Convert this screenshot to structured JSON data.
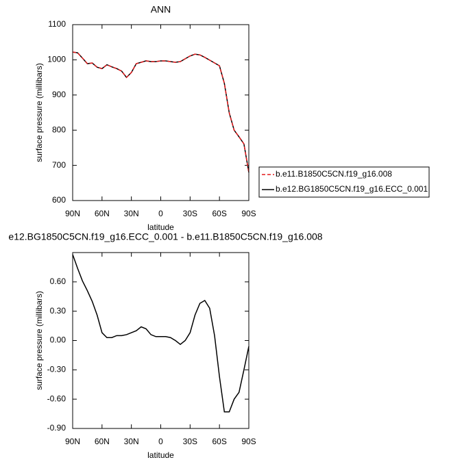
{
  "chart_data": [
    {
      "type": "line",
      "title": "ANN",
      "xlabel": "latitude",
      "ylabel": "surface pressure (millibars)",
      "x": [
        90,
        85,
        80,
        75,
        70,
        65,
        60,
        55,
        50,
        45,
        40,
        35,
        30,
        25,
        20,
        15,
        10,
        5,
        0,
        -5,
        -10,
        -15,
        -20,
        -25,
        -30,
        -35,
        -40,
        -45,
        -50,
        -55,
        -60,
        -65,
        -70,
        -75,
        -80,
        -85,
        -90
      ],
      "series": [
        {
          "name": "b.e11.B1850C5CN.f19_g16.008",
          "color": "#e41a1c",
          "linestyle": "dashed",
          "values": [
            1022,
            1020,
            1005,
            989,
            991,
            979,
            975,
            986,
            980,
            975,
            968,
            950,
            964,
            989,
            993,
            997,
            995,
            995,
            997,
            997,
            995,
            993,
            995,
            1003,
            1011,
            1016,
            1014,
            1007,
            999,
            991,
            983,
            933,
            849,
            800,
            781,
            761,
            680
          ]
        },
        {
          "name": "b.e12.BG1850C5CN.f19_g16.ECC_0.001",
          "color": "#000000",
          "linestyle": "solid",
          "values": [
            1022,
            1020,
            1005,
            989,
            991,
            979,
            975,
            986,
            980,
            975,
            968,
            950,
            964,
            989,
            993,
            997,
            995,
            995,
            997,
            997,
            995,
            993,
            995,
            1003,
            1011,
            1016,
            1014,
            1007,
            999,
            991,
            983,
            933,
            849,
            800,
            781,
            761,
            680
          ]
        }
      ],
      "xlim": [
        90,
        -90
      ],
      "xticks": [
        {
          "value": 90,
          "label": "90N"
        },
        {
          "value": 60,
          "label": "60N"
        },
        {
          "value": 30,
          "label": "30N"
        },
        0,
        {
          "value": -30,
          "label": "30S"
        },
        {
          "value": -60,
          "label": "60S"
        },
        {
          "value": -90,
          "label": "90S"
        }
      ],
      "ylim": [
        600,
        1100
      ],
      "yticks": [
        600,
        700,
        800,
        900,
        1000,
        1100
      ]
    },
    {
      "type": "line",
      "title": "e12.BG1850C5CN.f19_g16.ECC_0.001 - b.e11.B1850C5CN.f19_g16.008",
      "xlabel": "latitude",
      "ylabel": "surface pressure (millibars)",
      "x": [
        90,
        85,
        80,
        75,
        70,
        65,
        60,
        55,
        50,
        45,
        40,
        35,
        30,
        25,
        20,
        15,
        10,
        5,
        0,
        -5,
        -10,
        -15,
        -20,
        -25,
        -30,
        -35,
        -40,
        -45,
        -50,
        -55,
        -60,
        -65,
        -70,
        -75,
        -80,
        -85,
        -90
      ],
      "series": [
        {
          "color": "#000000",
          "linestyle": "solid",
          "values": [
            0.88,
            0.74,
            0.61,
            0.51,
            0.4,
            0.26,
            0.08,
            0.03,
            0.03,
            0.05,
            0.05,
            0.06,
            0.08,
            0.1,
            0.14,
            0.12,
            0.06,
            0.04,
            0.04,
            0.04,
            0.03,
            0.0,
            -0.04,
            0.0,
            0.08,
            0.26,
            0.38,
            0.41,
            0.33,
            0.05,
            -0.37,
            -0.73,
            -0.73,
            -0.6,
            -0.53,
            -0.3,
            -0.06
          ]
        }
      ],
      "xlim": [
        90,
        -90
      ],
      "xticks": [
        {
          "value": 90,
          "label": "90N"
        },
        {
          "value": 60,
          "label": "60N"
        },
        {
          "value": 30,
          "label": "30N"
        },
        0,
        {
          "value": -30,
          "label": "30S"
        },
        {
          "value": -60,
          "label": "60S"
        },
        {
          "value": -90,
          "label": "90S"
        }
      ],
      "ylim": [
        -0.9,
        0.9
      ],
      "yticks": [
        {
          "value": -0.9,
          "label": "-0.90"
        },
        {
          "value": -0.6,
          "label": "-0.60"
        },
        {
          "value": -0.3,
          "label": "-0.30"
        },
        {
          "value": 0,
          "label": "0.00"
        },
        {
          "value": 0.3,
          "label": "0.30"
        },
        {
          "value": 0.6,
          "label": "0.60"
        }
      ]
    }
  ]
}
